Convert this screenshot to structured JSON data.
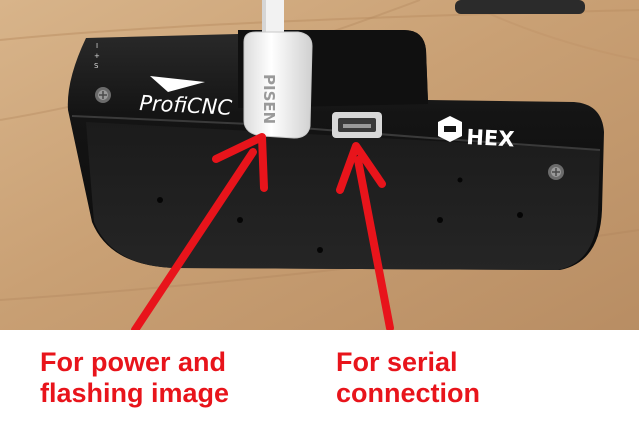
{
  "photo": {
    "device_logo_left": "ProfiCNC",
    "device_logo_right": "HEX",
    "cable_brand": "PISEN",
    "edge_markings": [
      "I",
      "+",
      "S"
    ]
  },
  "captions": {
    "left": {
      "line1": "For power and",
      "line2": "flashing image"
    },
    "right": {
      "line1": "For serial",
      "line2": "connection"
    }
  },
  "colors": {
    "arrow": "#e8141b",
    "caption": "#e8141b",
    "device_body": "#151515",
    "table_wood": "#c9a47b",
    "cable": "#f4f4f4"
  }
}
